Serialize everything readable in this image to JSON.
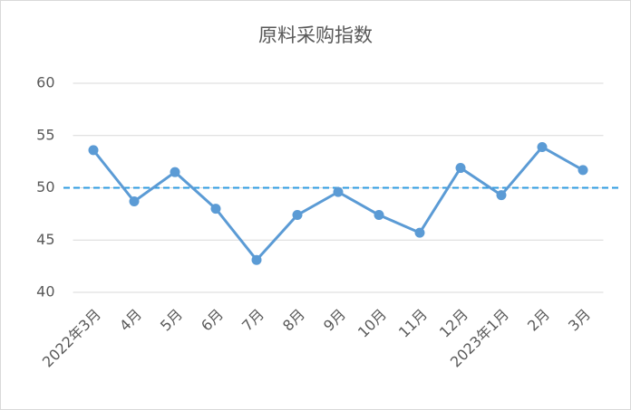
{
  "chart_data": {
    "type": "line",
    "title": "原料采购指数",
    "categories": [
      "2022年3月",
      "4月",
      "5月",
      "6月",
      "7月",
      "8月",
      "9月",
      "10月",
      "11月",
      "12月",
      "2023年1月",
      "2月",
      "3月"
    ],
    "series": [
      {
        "name": "原料采购指数",
        "color": "#5b9bd5",
        "values": [
          53.6,
          48.7,
          51.5,
          48.0,
          43.1,
          47.4,
          49.6,
          47.4,
          45.7,
          51.9,
          49.3,
          53.9,
          51.7
        ]
      }
    ],
    "ylim": [
      40,
      60
    ],
    "yticks": [
      40,
      45,
      50,
      55,
      60
    ],
    "grid": true,
    "reference_line": {
      "value": 50,
      "color": "#2e9be0"
    }
  }
}
